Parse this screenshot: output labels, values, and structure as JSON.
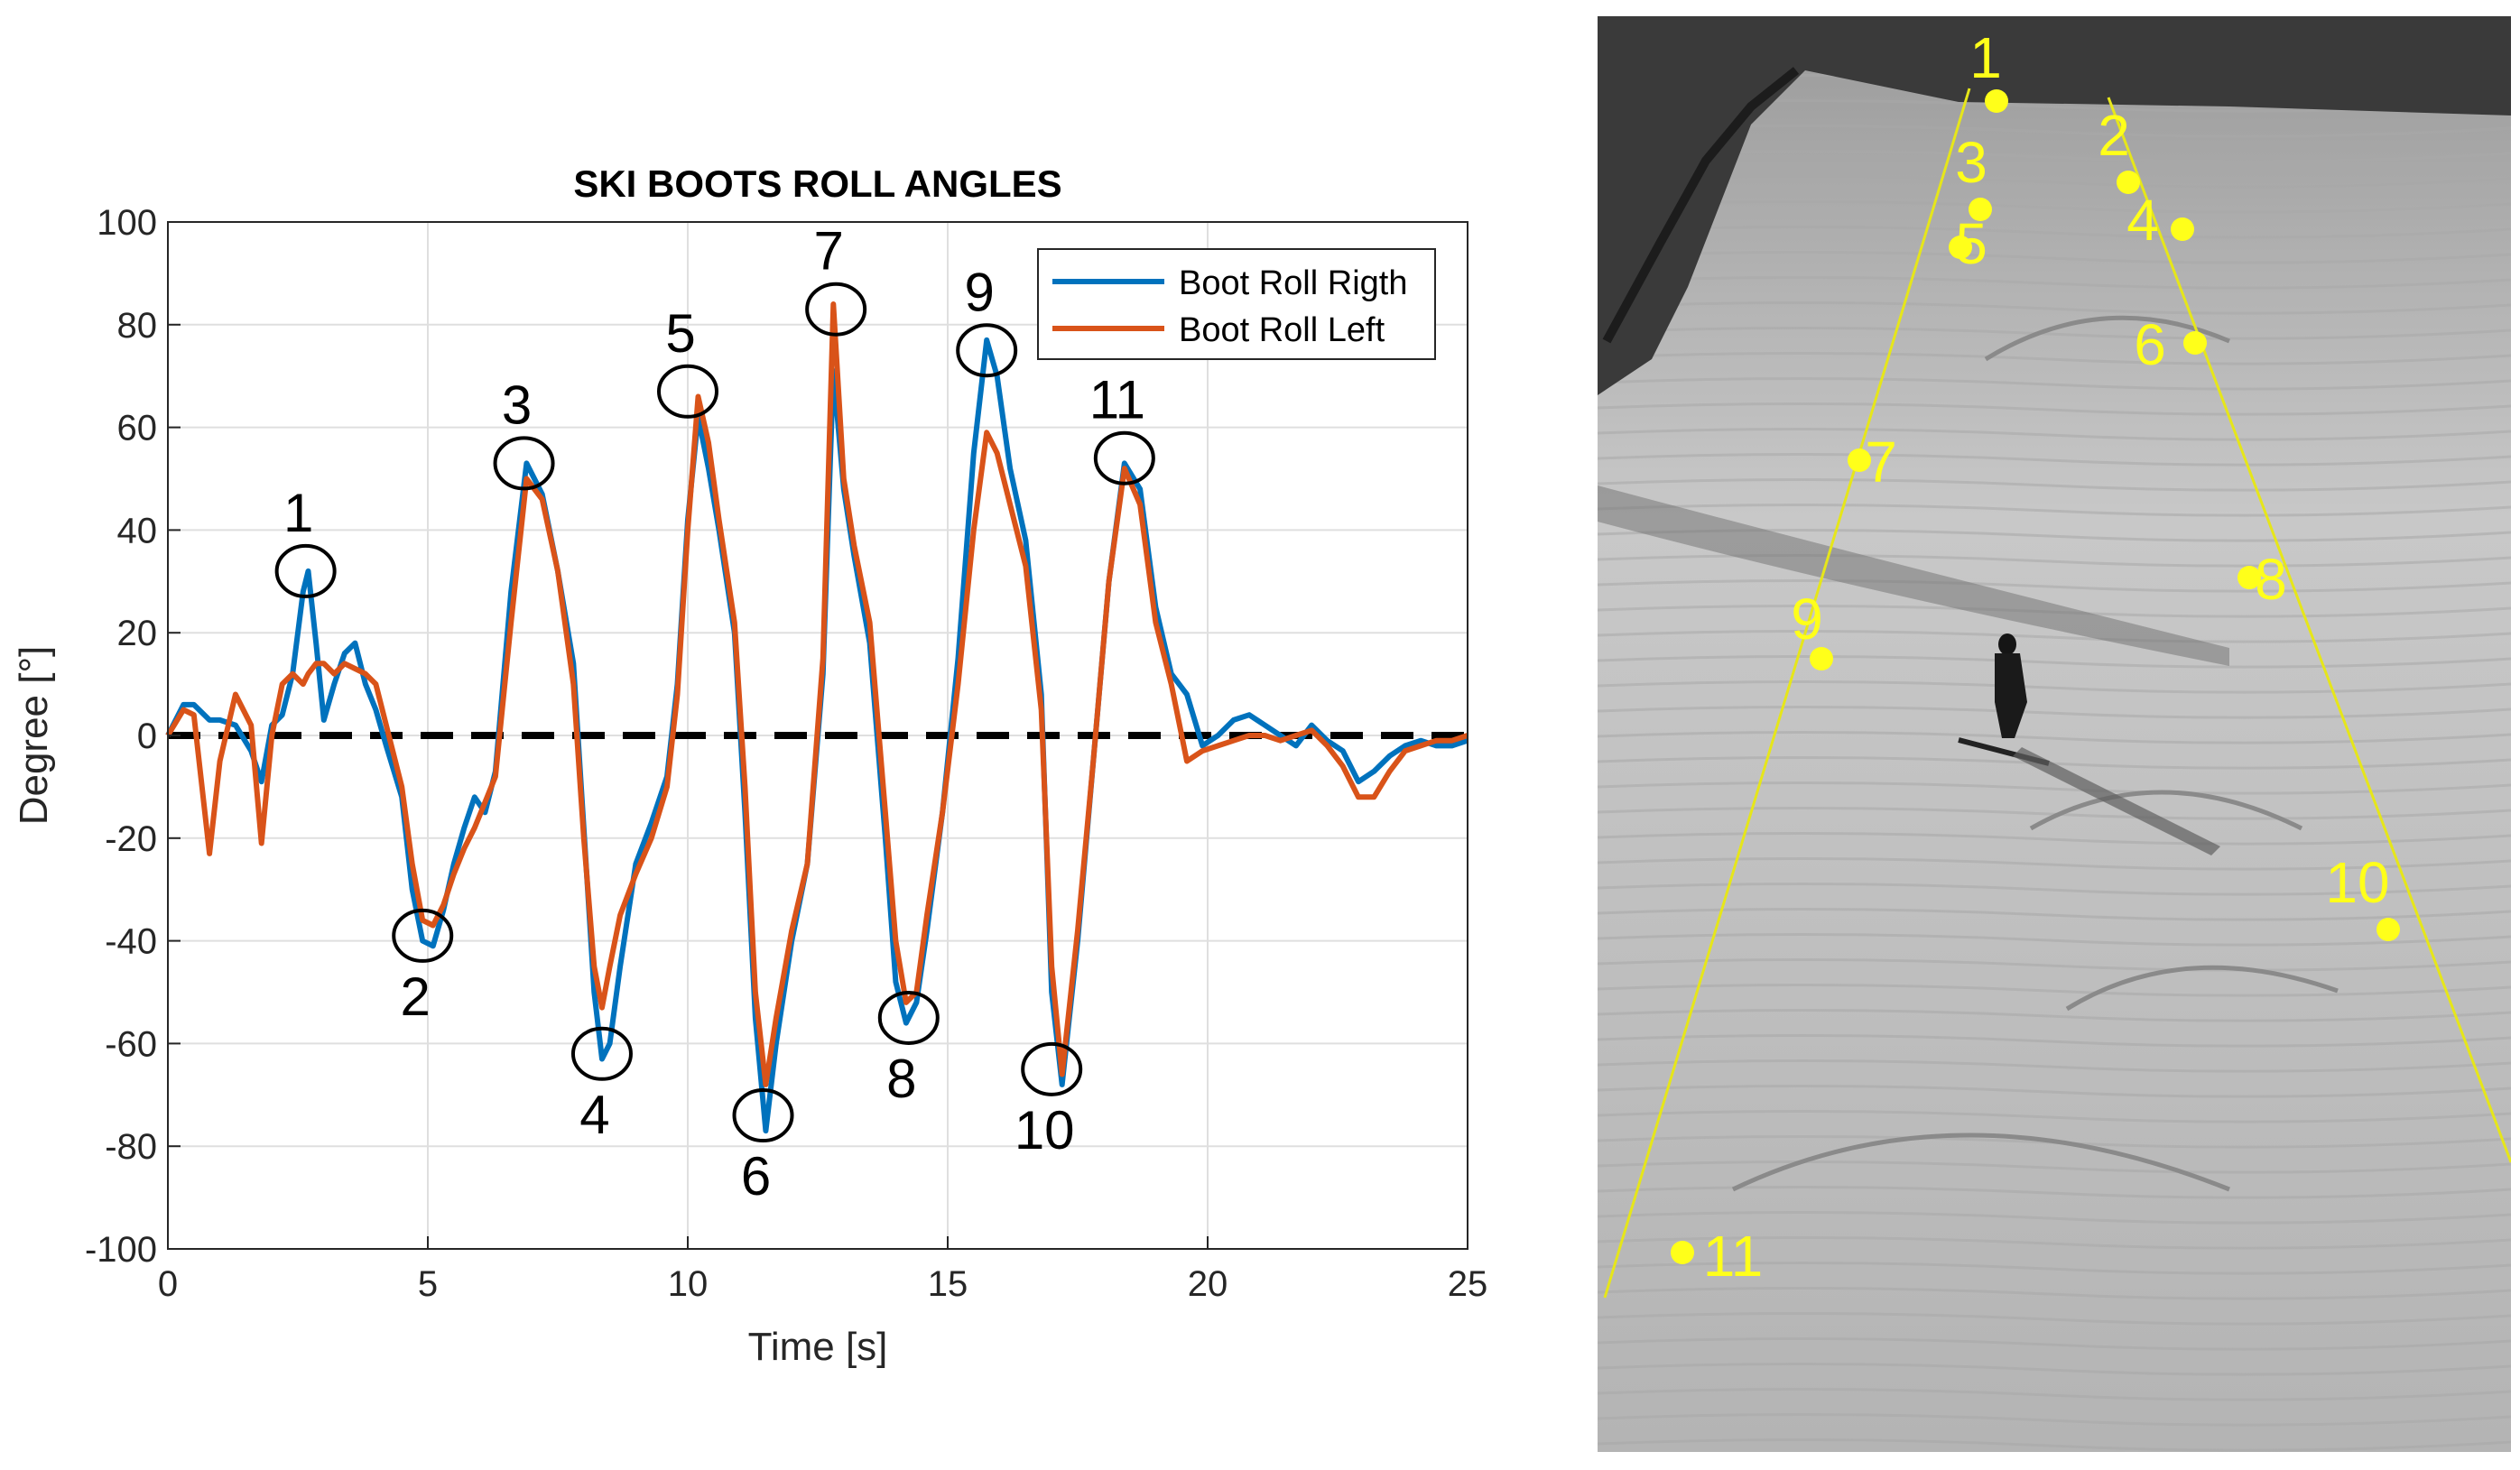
{
  "chart_data": {
    "type": "line",
    "title": "SKI BOOTS ROLL ANGLES",
    "xlabel": "Time [s]",
    "ylabel": "Degree [°]",
    "xlim": [
      0,
      25
    ],
    "ylim": [
      -100,
      100
    ],
    "xticks": [
      0,
      5,
      10,
      15,
      20,
      25
    ],
    "yticks": [
      -100,
      -80,
      -60,
      -40,
      -20,
      0,
      20,
      40,
      60,
      80,
      100
    ],
    "grid": true,
    "legend_position": "top-right",
    "reference_line": {
      "y": 0,
      "style": "dashed",
      "color": "#000000"
    },
    "series": [
      {
        "name": "Boot Roll Rigth",
        "color": "#0072BD",
        "x": [
          0,
          0.3,
          0.5,
          0.8,
          1.0,
          1.3,
          1.6,
          1.8,
          2.0,
          2.2,
          2.4,
          2.6,
          2.7,
          2.85,
          3.0,
          3.2,
          3.4,
          3.6,
          3.8,
          4.0,
          4.2,
          4.5,
          4.7,
          4.9,
          5.1,
          5.3,
          5.5,
          5.7,
          5.9,
          6.1,
          6.3,
          6.6,
          6.9,
          7.2,
          7.5,
          7.8,
          8.0,
          8.2,
          8.35,
          8.5,
          8.7,
          9.0,
          9.3,
          9.6,
          9.8,
          10.0,
          10.2,
          10.4,
          10.6,
          10.9,
          11.1,
          11.3,
          11.5,
          11.7,
          12.0,
          12.3,
          12.6,
          12.8,
          13.0,
          13.2,
          13.5,
          13.8,
          14.0,
          14.2,
          14.4,
          14.6,
          14.9,
          15.2,
          15.5,
          15.75,
          15.95,
          16.2,
          16.5,
          16.8,
          17.0,
          17.2,
          17.5,
          17.8,
          18.1,
          18.4,
          18.7,
          19.0,
          19.3,
          19.6,
          19.9,
          20.2,
          20.5,
          20.8,
          21.1,
          21.4,
          21.7,
          22.0,
          22.3,
          22.6,
          22.9,
          23.2,
          23.5,
          23.8,
          24.1,
          24.4,
          24.7,
          25.0
        ],
        "values": [
          0,
          6,
          6,
          3,
          3,
          2,
          -3,
          -9,
          2,
          4,
          12,
          28,
          32,
          18,
          3,
          10,
          16,
          18,
          10,
          5,
          -2,
          -12,
          -30,
          -40,
          -41,
          -34,
          -25,
          -18,
          -12,
          -15,
          -7,
          28,
          53,
          47,
          32,
          14,
          -18,
          -50,
          -63,
          -60,
          -45,
          -25,
          -17,
          -8,
          10,
          42,
          62,
          52,
          40,
          20,
          -15,
          -55,
          -77,
          -60,
          -40,
          -25,
          12,
          71,
          48,
          35,
          18,
          -20,
          -48,
          -56,
          -52,
          -38,
          -15,
          15,
          55,
          77,
          70,
          52,
          38,
          8,
          -50,
          -68,
          -40,
          -5,
          30,
          53,
          48,
          25,
          12,
          8,
          -2,
          0,
          3,
          4,
          2,
          0,
          -2,
          2,
          -1,
          -3,
          -9,
          -7,
          -4,
          -2,
          -1,
          -2,
          -2,
          -1
        ],
        "peak_labels": [
          "1",
          "2",
          "3",
          "4",
          "5",
          "6",
          "7",
          "8",
          "9",
          "10",
          "11"
        ]
      },
      {
        "name": "Boot Roll Left",
        "color": "#D95319",
        "x": [
          0,
          0.3,
          0.5,
          0.8,
          1.0,
          1.3,
          1.6,
          1.8,
          2.0,
          2.2,
          2.4,
          2.6,
          2.7,
          2.85,
          3.0,
          3.2,
          3.4,
          3.6,
          3.8,
          4.0,
          4.2,
          4.5,
          4.7,
          4.9,
          5.1,
          5.3,
          5.5,
          5.7,
          5.9,
          6.1,
          6.3,
          6.6,
          6.9,
          7.2,
          7.5,
          7.8,
          8.0,
          8.2,
          8.35,
          8.5,
          8.7,
          9.0,
          9.3,
          9.6,
          9.8,
          10.0,
          10.2,
          10.4,
          10.6,
          10.9,
          11.1,
          11.3,
          11.5,
          11.7,
          12.0,
          12.3,
          12.6,
          12.8,
          13.0,
          13.2,
          13.5,
          13.8,
          14.0,
          14.2,
          14.4,
          14.6,
          14.9,
          15.2,
          15.5,
          15.75,
          15.95,
          16.2,
          16.5,
          16.8,
          17.0,
          17.2,
          17.5,
          17.8,
          18.1,
          18.4,
          18.7,
          19.0,
          19.3,
          19.6,
          19.9,
          20.2,
          20.5,
          20.8,
          21.1,
          21.4,
          21.7,
          22.0,
          22.3,
          22.6,
          22.9,
          23.2,
          23.5,
          23.8,
          24.1,
          24.4,
          24.7,
          25.0
        ],
        "values": [
          0,
          5,
          4,
          -23,
          -5,
          8,
          2,
          -21,
          0,
          10,
          12,
          10,
          12,
          14,
          14,
          12,
          14,
          13,
          12,
          10,
          2,
          -10,
          -25,
          -36,
          -37,
          -33,
          -27,
          -22,
          -18,
          -13,
          -8,
          22,
          50,
          46,
          32,
          10,
          -20,
          -45,
          -53,
          -45,
          -35,
          -27,
          -20,
          -10,
          8,
          40,
          66,
          57,
          42,
          22,
          -10,
          -50,
          -68,
          -55,
          -38,
          -25,
          15,
          84,
          50,
          37,
          22,
          -15,
          -40,
          -52,
          -50,
          -35,
          -15,
          10,
          40,
          59,
          55,
          45,
          33,
          5,
          -45,
          -66,
          -38,
          -5,
          30,
          52,
          45,
          22,
          10,
          -5,
          -3,
          -2,
          -1,
          0,
          0,
          -1,
          0,
          1,
          -2,
          -6,
          -12,
          -12,
          -7,
          -3,
          -2,
          -1,
          -1,
          0
        ],
        "peak_labels": []
      }
    ],
    "annotations": [
      {
        "label": "1",
        "x": 2.65,
        "y": 32
      },
      {
        "label": "2",
        "x": 4.9,
        "y": -39
      },
      {
        "label": "3",
        "x": 6.85,
        "y": 53
      },
      {
        "label": "4",
        "x": 8.35,
        "y": -62
      },
      {
        "label": "5",
        "x": 10.0,
        "y": 67
      },
      {
        "label": "6",
        "x": 11.45,
        "y": -74
      },
      {
        "label": "7",
        "x": 12.85,
        "y": 83
      },
      {
        "label": "8",
        "x": 14.25,
        "y": -55
      },
      {
        "label": "9",
        "x": 15.75,
        "y": 75
      },
      {
        "label": "10",
        "x": 17.0,
        "y": -65
      },
      {
        "label": "11",
        "x": 18.4,
        "y": 54
      }
    ]
  },
  "photo": {
    "description_labels": [
      "1",
      "2",
      "3",
      "4",
      "5",
      "6",
      "7",
      "8",
      "9",
      "10",
      "11"
    ],
    "marker_color": "#ffff1a",
    "guide_line_color": "#e6e61a"
  }
}
